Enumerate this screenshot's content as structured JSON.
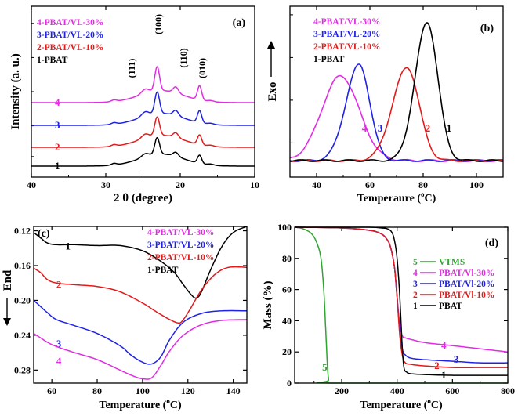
{
  "colors": {
    "black": "#000000",
    "red": "#e31a1c",
    "blue": "#1f22e6",
    "magenta": "#e22ce3",
    "green": "#2fa52f"
  },
  "chart_data": [
    {
      "panel": "(a)",
      "type": "line",
      "xlabel": "2 θ (degree)",
      "ylabel": "Intensity (a. u.)",
      "xlim": [
        40,
        10
      ],
      "x_reversed": true,
      "xticks": [
        "40",
        "30",
        "20",
        "10"
      ],
      "yticks_labeled": false,
      "legend": [
        {
          "text": "4-PBAT/VL-30%",
          "color": "#e22ce3"
        },
        {
          "text": "3-PBAT/VL-20%",
          "color": "#1f22e6"
        },
        {
          "text": "2-PBAT/VL-10%",
          "color": "#e31a1c"
        },
        {
          "text": "1-PBAT",
          "color": "#000000"
        }
      ],
      "legend_position": "top-left",
      "peak_labels": [
        "(111)",
        "(100)",
        "(110)",
        "(010)"
      ],
      "peaks_2theta": [
        24.7,
        23.1,
        20.6,
        17.4
      ],
      "series": [
        {
          "label": "4",
          "color": "#e22ce3",
          "offset": 0.75,
          "peak_heights": [
            0.12,
            0.65,
            0.16,
            0.38
          ]
        },
        {
          "label": "3",
          "color": "#1f22e6",
          "offset": 0.5,
          "peak_heights": [
            0.12,
            0.58,
            0.14,
            0.32
          ]
        },
        {
          "label": "2",
          "color": "#e31a1c",
          "offset": 0.25,
          "peak_heights": [
            0.11,
            0.5,
            0.13,
            0.26
          ]
        },
        {
          "label": "1",
          "color": "#000000",
          "offset": 0.0,
          "peak_heights": [
            0.09,
            0.45,
            0.11,
            0.22
          ]
        }
      ]
    },
    {
      "panel": "(b)",
      "type": "line",
      "xlabel": "Temperaure (°C)",
      "xlabel_parts": [
        "Temperaure (",
        "o",
        "C)"
      ],
      "ylabel": "Exo",
      "xlim": [
        30,
        110
      ],
      "xticks": [
        "40",
        "60",
        "80",
        "100"
      ],
      "yticks_labeled": false,
      "legend": [
        {
          "text": "4-PBAT/VL-30%",
          "color": "#e22ce3"
        },
        {
          "text": "3-PBAT/VL-20%",
          "color": "#1f22e6"
        },
        {
          "text": "2-PBAT/VL-10%",
          "color": "#e31a1c"
        },
        {
          "text": "1-PBAT",
          "color": "#000000"
        }
      ],
      "legend_position": "top-left",
      "series": [
        {
          "label": "4",
          "color": "#e22ce3",
          "peak_x": 49,
          "peak_height": 0.6,
          "width_left": 7,
          "width_right": 7,
          "end_x": 64
        },
        {
          "label": "3",
          "color": "#1f22e6",
          "peak_x": 56,
          "peak_height": 0.68,
          "width_left": 5,
          "width_right": 4,
          "end_x": 65
        },
        {
          "label": "2",
          "color": "#e31a1c",
          "peak_x": 74,
          "peak_height": 0.66,
          "width_left": 5.5,
          "width_right": 4.5,
          "end_x": 84
        },
        {
          "label": "1",
          "color": "#000000",
          "peak_x": 81.5,
          "peak_height": 0.98,
          "width_left": 4.5,
          "width_right": 4,
          "end_x": 92
        }
      ]
    },
    {
      "panel": "(c)",
      "type": "line",
      "xlabel": "Temperature (°C)",
      "xlabel_parts": [
        "Temperature (",
        "o",
        "C)"
      ],
      "ylabel": "End",
      "xlim": [
        52,
        146
      ],
      "ylim": [
        0.12,
        0.295
      ],
      "y_reversed": true,
      "xticks": [
        "60",
        "80",
        "100",
        "120",
        "140"
      ],
      "yticks": [
        "0.12",
        "0.16",
        "0.20",
        "0.24",
        "0.28"
      ],
      "legend": [
        {
          "text": "4-PBAT/VL-30%",
          "color": "#e22ce3"
        },
        {
          "text": "3-PBAT/VL-20%",
          "color": "#1f22e6"
        },
        {
          "text": "2-PBAT/VL-10%",
          "color": "#e31a1c"
        },
        {
          "text": "1-PBAT",
          "color": "#000000"
        }
      ],
      "legend_position": "top-right",
      "series": [
        {
          "label": "1",
          "color": "#000000",
          "x": [
            52,
            55,
            58,
            62,
            70,
            80,
            90,
            100,
            108,
            114,
            118,
            122,
            124,
            126,
            130,
            135,
            140,
            146
          ],
          "y": [
            0.122,
            0.128,
            0.134,
            0.136,
            0.136,
            0.137,
            0.137,
            0.143,
            0.155,
            0.168,
            0.182,
            0.195,
            0.197,
            0.19,
            0.165,
            0.138,
            0.122,
            0.115
          ]
        },
        {
          "label": "2",
          "color": "#e31a1c",
          "x": [
            52,
            55,
            58,
            62,
            70,
            80,
            90,
            100,
            106,
            112,
            116,
            118,
            121,
            126,
            132,
            138,
            146
          ],
          "y": [
            0.163,
            0.168,
            0.176,
            0.18,
            0.182,
            0.184,
            0.19,
            0.203,
            0.213,
            0.222,
            0.226,
            0.222,
            0.21,
            0.188,
            0.17,
            0.162,
            0.162
          ]
        },
        {
          "label": "3",
          "color": "#1f22e6",
          "x": [
            52,
            55,
            58,
            62,
            70,
            80,
            90,
            95,
            100,
            104,
            108,
            112,
            118,
            126,
            135,
            146
          ],
          "y": [
            0.2,
            0.207,
            0.214,
            0.222,
            0.229,
            0.238,
            0.252,
            0.263,
            0.271,
            0.273,
            0.265,
            0.245,
            0.225,
            0.215,
            0.212,
            0.212
          ]
        },
        {
          "label": "4",
          "color": "#e22ce3",
          "x": [
            52,
            55,
            58,
            62,
            70,
            80,
            90,
            96,
            100,
            104,
            108,
            112,
            118,
            126,
            135,
            146
          ],
          "y": [
            0.238,
            0.243,
            0.248,
            0.253,
            0.26,
            0.268,
            0.28,
            0.287,
            0.29,
            0.289,
            0.275,
            0.258,
            0.24,
            0.228,
            0.223,
            0.222
          ]
        }
      ]
    },
    {
      "panel": "(d)",
      "type": "line",
      "xlabel": "Temperature (°C)",
      "xlabel_parts": [
        "Temperature (",
        "o",
        "C)"
      ],
      "ylabel": "Mass (%)",
      "xlim": [
        30,
        800
      ],
      "ylim": [
        0,
        100
      ],
      "xticks": [
        "200",
        "400",
        "600",
        "800"
      ],
      "xtick_values": [
        200,
        400,
        600,
        800
      ],
      "yticks": [
        "0",
        "20",
        "40",
        "60",
        "80",
        "100"
      ],
      "legend": [
        {
          "num": "5",
          "text": "VTMS",
          "color": "#2fa52f"
        },
        {
          "num": "4",
          "text": "PBAT/Vl-30%",
          "color": "#e22ce3"
        },
        {
          "num": "3",
          "text": "PBAT/Vl-20%",
          "color": "#1f22e6"
        },
        {
          "num": "2",
          "text": "PBAT/Vl-10%",
          "color": "#e31a1c"
        },
        {
          "num": "1",
          "text": "PBAT",
          "color": "#000000"
        }
      ],
      "legend_position": "center-right",
      "series": [
        {
          "label": "5",
          "color": "#2fa52f",
          "x": [
            30,
            60,
            90,
            110,
            125,
            135,
            142,
            148,
            153,
            160,
            800
          ],
          "y": [
            100,
            99,
            96,
            90,
            80,
            60,
            35,
            12,
            2,
            0,
            0
          ]
        },
        {
          "label": "4",
          "color": "#e22ce3",
          "x": [
            30,
            200,
            300,
            340,
            360,
            375,
            390,
            400,
            410,
            420,
            430,
            450,
            500,
            600,
            700,
            800
          ],
          "y": [
            100,
            99.5,
            98,
            96,
            93,
            88,
            75,
            55,
            37,
            30,
            29,
            28,
            26,
            24,
            22,
            20
          ]
        },
        {
          "label": "3",
          "color": "#1f22e6",
          "x": [
            30,
            200,
            300,
            340,
            360,
            375,
            390,
            400,
            410,
            420,
            430,
            450,
            500,
            600,
            700,
            800
          ],
          "y": [
            100,
            99.5,
            98,
            96,
            93,
            88,
            75,
            55,
            33,
            21,
            18,
            16,
            15,
            14,
            13,
            13
          ]
        },
        {
          "label": "2",
          "color": "#e31a1c",
          "x": [
            30,
            200,
            300,
            340,
            360,
            375,
            390,
            400,
            410,
            420,
            430,
            450,
            500,
            600,
            700,
            800
          ],
          "y": [
            100,
            99.5,
            98,
            96,
            93,
            88,
            75,
            55,
            30,
            17,
            13,
            12,
            11,
            10,
            10,
            10
          ]
        },
        {
          "label": "1",
          "color": "#000000",
          "x": [
            30,
            200,
            300,
            345,
            365,
            380,
            390,
            400,
            410,
            418,
            425,
            435,
            450,
            500,
            600,
            800
          ],
          "y": [
            100,
            100,
            100,
            99.5,
            99,
            97,
            92,
            80,
            55,
            25,
            10,
            7,
            6,
            5.5,
            5,
            5
          ]
        }
      ]
    }
  ]
}
